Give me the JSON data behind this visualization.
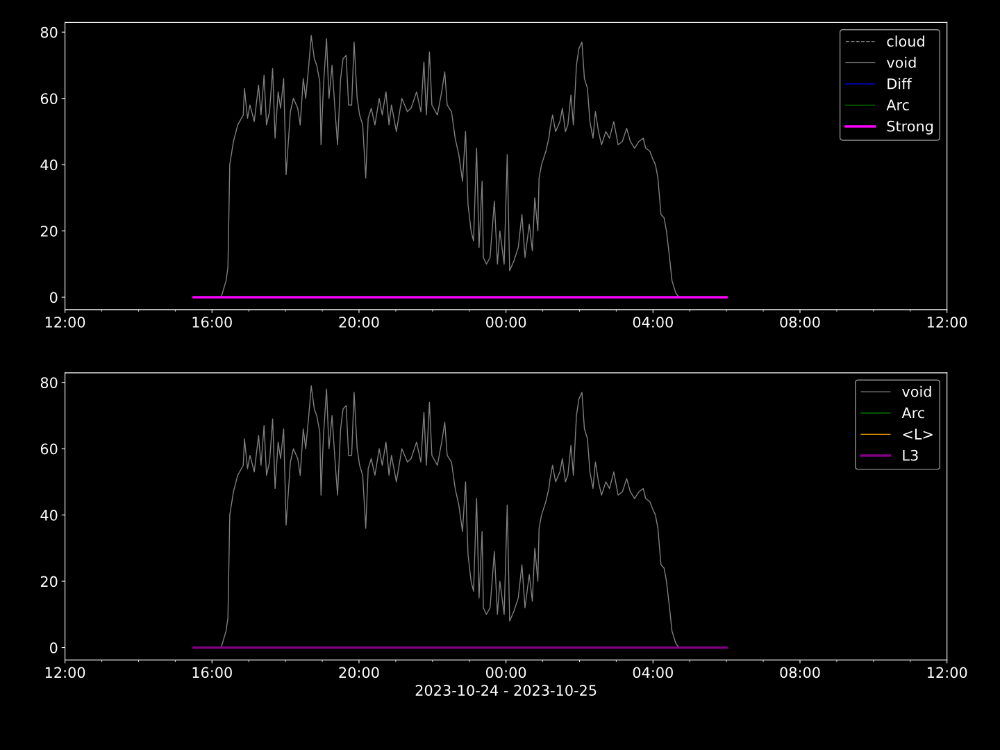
{
  "chart_data": [
    {
      "type": "line",
      "xlim": [
        "2023-10-24T12:00",
        "2023-10-25T12:00"
      ],
      "xticks": [
        {
          "value": "2023-10-24T12:00",
          "label": "12:00"
        },
        {
          "value": "2023-10-24T16:00",
          "label": "16:00"
        },
        {
          "value": "2023-10-24T20:00",
          "label": "20:00"
        },
        {
          "value": "2023-10-25T00:00",
          "label": "00:00"
        },
        {
          "value": "2023-10-25T04:00",
          "label": "04:00"
        },
        {
          "value": "2023-10-25T08:00",
          "label": "08:00"
        },
        {
          "value": "2023-10-25T12:00",
          "label": "12:00"
        }
      ],
      "ylim": [
        -3.75,
        82.9
      ],
      "yticks": [
        0,
        20,
        40,
        60,
        80
      ],
      "grid": false,
      "legend": "top right",
      "x": [
        "2023-10-24T15:30",
        "2023-10-24T16:15",
        "2023-10-24T16:23",
        "2023-10-24T16:26",
        "2023-10-24T16:29",
        "2023-10-24T16:35",
        "2023-10-24T16:42",
        "2023-10-24T16:51",
        "2023-10-24T16:53",
        "2023-10-24T16:58",
        "2023-10-24T17:02",
        "2023-10-24T17:09",
        "2023-10-24T17:16",
        "2023-10-24T17:20",
        "2023-10-24T17:25",
        "2023-10-24T17:29",
        "2023-10-24T17:34",
        "2023-10-24T17:39",
        "2023-10-24T17:43",
        "2023-10-24T17:48",
        "2023-10-24T17:52",
        "2023-10-24T17:57",
        "2023-10-24T18:01",
        "2023-10-24T18:08",
        "2023-10-24T18:13",
        "2023-10-24T18:20",
        "2023-10-24T18:24",
        "2023-10-24T18:29",
        "2023-10-24T18:33",
        "2023-10-24T18:38",
        "2023-10-24T18:42",
        "2023-10-24T18:47",
        "2023-10-24T18:51",
        "2023-10-24T18:56",
        "2023-10-24T18:58",
        "2023-10-24T19:02",
        "2023-10-24T19:07",
        "2023-10-24T19:11",
        "2023-10-24T19:16",
        "2023-10-24T19:21",
        "2023-10-24T19:25",
        "2023-10-24T19:30",
        "2023-10-24T19:34",
        "2023-10-24T19:39",
        "2023-10-24T19:43",
        "2023-10-24T19:48",
        "2023-10-24T19:52",
        "2023-10-24T19:57",
        "2023-10-24T20:01",
        "2023-10-24T20:06",
        "2023-10-24T20:11",
        "2023-10-24T20:15",
        "2023-10-24T20:20",
        "2023-10-24T20:26",
        "2023-10-24T20:33",
        "2023-10-24T20:38",
        "2023-10-24T20:44",
        "2023-10-24T20:49",
        "2023-10-24T20:53",
        "2023-10-24T21:01",
        "2023-10-24T21:10",
        "2023-10-24T21:19",
        "2023-10-24T21:25",
        "2023-10-24T21:34",
        "2023-10-24T21:41",
        "2023-10-24T21:46",
        "2023-10-24T21:50",
        "2023-10-24T21:55",
        "2023-10-24T21:59",
        "2023-10-24T22:08",
        "2023-10-24T22:15",
        "2023-10-24T22:20",
        "2023-10-24T22:24",
        "2023-10-24T22:31",
        "2023-10-24T22:37",
        "2023-10-24T22:43",
        "2023-10-24T22:49",
        "2023-10-24T22:54",
        "2023-10-24T22:58",
        "2023-10-24T23:03",
        "2023-10-24T23:07",
        "2023-10-24T23:12",
        "2023-10-24T23:16",
        "2023-10-24T23:21",
        "2023-10-24T23:23",
        "2023-10-24T23:28",
        "2023-10-24T23:34",
        "2023-10-24T23:41",
        "2023-10-24T23:46",
        "2023-10-24T23:50",
        "2023-10-24T23:57",
        "2023-10-25T00:02",
        "2023-10-25T00:06",
        "2023-10-25T00:13",
        "2023-10-25T00:20",
        "2023-10-25T00:26",
        "2023-10-25T00:31",
        "2023-10-25T00:38",
        "2023-10-25T00:43",
        "2023-10-25T00:47",
        "2023-10-25T00:52",
        "2023-10-25T00:54",
        "2023-10-25T00:58",
        "2023-10-25T01:05",
        "2023-10-25T01:10",
        "2023-10-25T01:12",
        "2023-10-25T01:16",
        "2023-10-25T01:21",
        "2023-10-25T01:28",
        "2023-10-25T01:32",
        "2023-10-25T01:37",
        "2023-10-25T01:41",
        "2023-10-25T01:46",
        "2023-10-25T01:50",
        "2023-10-25T01:55",
        "2023-10-25T01:59",
        "2023-10-25T02:04",
        "2023-10-25T02:08",
        "2023-10-25T02:13",
        "2023-10-25T02:17",
        "2023-10-25T02:22",
        "2023-10-25T02:26",
        "2023-10-25T02:31",
        "2023-10-25T02:36",
        "2023-10-25T02:43",
        "2023-10-25T02:49",
        "2023-10-25T02:56",
        "2023-10-25T03:03",
        "2023-10-25T03:10",
        "2023-10-25T03:17",
        "2023-10-25T03:23",
        "2023-10-25T03:30",
        "2023-10-25T03:37",
        "2023-10-25T03:44",
        "2023-10-25T03:48",
        "2023-10-25T03:55",
        "2023-10-25T03:59",
        "2023-10-25T04:04",
        "2023-10-25T04:08",
        "2023-10-25T04:13",
        "2023-10-25T04:18",
        "2023-10-25T04:22",
        "2023-10-25T04:27",
        "2023-10-25T04:31",
        "2023-10-25T04:36",
        "2023-10-25T04:38",
        "2023-10-25T04:43",
        "2023-10-25T06:00"
      ],
      "series": [
        {
          "name": "cloud",
          "color": "#808080",
          "line_style": "dashed",
          "values": [
            null,
            null,
            null,
            null,
            null,
            null,
            null,
            null,
            null,
            null,
            null,
            null,
            null,
            null,
            null,
            null,
            null,
            null,
            null,
            null,
            null,
            null,
            null,
            null,
            null,
            null,
            null,
            null,
            null,
            null,
            null,
            null,
            null,
            null,
            null,
            null,
            null,
            null,
            null,
            null,
            null,
            null,
            null,
            null,
            null,
            null,
            null,
            null,
            null,
            null,
            null,
            null,
            null,
            null,
            null,
            null,
            null,
            null,
            null,
            null,
            null,
            null,
            null,
            null,
            null,
            null,
            null,
            null,
            null,
            null,
            null,
            null,
            null,
            null,
            null,
            null,
            null,
            null,
            null,
            null,
            null,
            null,
            null,
            null,
            null,
            null,
            null,
            null,
            null,
            null,
            null,
            null,
            null,
            null,
            null,
            null,
            null,
            null,
            null,
            null,
            null,
            null,
            null,
            null,
            null,
            null,
            null,
            null,
            null,
            null,
            null,
            null,
            null,
            null,
            null,
            null,
            null,
            null,
            null,
            null,
            null,
            null,
            null,
            null,
            null,
            null,
            null,
            null,
            null,
            null,
            null,
            null,
            null,
            null,
            null,
            null,
            null,
            null,
            null,
            null,
            null,
            null,
            null,
            null,
            null,
            null,
            null,
            null
          ]
        },
        {
          "name": "void",
          "color": "#808080",
          "values": [
            0,
            0,
            5,
            9,
            40,
            47,
            52,
            55,
            63,
            54,
            58,
            53,
            64,
            55,
            67,
            52,
            56,
            69,
            48,
            62,
            57,
            66,
            37,
            56,
            60,
            57,
            52,
            66,
            60,
            70,
            79,
            72,
            70,
            65,
            46,
            64,
            78,
            60,
            70,
            56,
            46,
            66,
            72,
            73,
            58,
            58,
            77,
            60,
            55,
            52,
            36,
            54,
            57,
            52,
            60,
            55,
            62,
            52,
            58,
            50,
            60,
            56,
            57,
            62,
            56,
            71,
            55,
            74,
            58,
            55,
            62,
            68,
            58,
            56,
            48,
            43,
            35,
            50,
            28,
            20,
            17,
            45,
            15,
            35,
            12,
            10,
            12,
            29,
            10,
            20,
            10,
            43,
            8,
            11,
            15,
            25,
            12,
            22,
            14,
            30,
            20,
            36,
            40,
            44,
            48,
            51,
            55,
            50,
            53,
            57,
            50,
            52,
            61,
            52,
            70,
            75,
            77,
            66,
            63,
            53,
            48,
            56,
            50,
            46,
            50,
            48,
            53,
            46,
            47,
            51,
            47,
            45,
            47,
            48,
            45,
            44,
            42,
            40,
            36,
            25,
            24,
            20,
            12,
            5,
            2,
            1,
            0,
            0
          ]
        },
        {
          "name": "Diff",
          "color": "#0000ff",
          "values": [
            null,
            null,
            null,
            null,
            null,
            null,
            null,
            null,
            null,
            null,
            null,
            null,
            null,
            null,
            null,
            null,
            null,
            null,
            null,
            null,
            null,
            null,
            null,
            null,
            null,
            null,
            null,
            null,
            null,
            null,
            null,
            null,
            null,
            null,
            null,
            null,
            null,
            null,
            null,
            null,
            null,
            null,
            null,
            null,
            null,
            null,
            null,
            null,
            null,
            null,
            null,
            null,
            null,
            null,
            null,
            null,
            null,
            null,
            null,
            null,
            null,
            null,
            null,
            null,
            null,
            null,
            null,
            null,
            null,
            null,
            null,
            null,
            null,
            null,
            null,
            null,
            null,
            null,
            null,
            null,
            null,
            null,
            null,
            null,
            null,
            null,
            null,
            null,
            null,
            null,
            null,
            null,
            null,
            null,
            null,
            null,
            null,
            null,
            null,
            null,
            null,
            null,
            null,
            null,
            null,
            null,
            null,
            null,
            null,
            null,
            null,
            null,
            null,
            null,
            null,
            null,
            null,
            null,
            null,
            null,
            null,
            null,
            null,
            null,
            null,
            null,
            null,
            null,
            null,
            null,
            null,
            null,
            null,
            null,
            null,
            null,
            null,
            null,
            null,
            null,
            null,
            null,
            null,
            null,
            null,
            null,
            null,
            null
          ]
        },
        {
          "name": "Arc",
          "color": "#008000",
          "values": [
            null,
            null,
            null,
            null,
            null,
            null,
            null,
            null,
            null,
            null,
            null,
            null,
            null,
            null,
            null,
            null,
            null,
            null,
            null,
            null,
            null,
            null,
            null,
            null,
            null,
            null,
            null,
            null,
            null,
            null,
            null,
            null,
            null,
            null,
            null,
            null,
            null,
            null,
            null,
            null,
            null,
            null,
            null,
            null,
            null,
            null,
            null,
            null,
            null,
            null,
            null,
            null,
            null,
            null,
            null,
            null,
            null,
            null,
            null,
            null,
            null,
            null,
            null,
            null,
            null,
            null,
            null,
            null,
            null,
            null,
            null,
            null,
            null,
            null,
            null,
            null,
            null,
            null,
            null,
            null,
            null,
            null,
            null,
            null,
            null,
            null,
            null,
            null,
            null,
            null,
            null,
            null,
            null,
            null,
            null,
            null,
            null,
            null,
            null,
            null,
            null,
            null,
            null,
            null,
            null,
            null,
            null,
            null,
            null,
            null,
            null,
            null,
            null,
            null,
            null,
            null,
            null,
            null,
            null,
            null,
            null,
            null,
            null,
            null,
            null,
            null,
            null,
            null,
            null,
            null,
            null,
            null,
            null,
            null,
            null,
            null,
            null,
            null,
            null,
            null,
            null,
            null,
            null,
            null,
            null,
            null,
            null,
            null
          ]
        },
        {
          "name": "Strong",
          "color": "#ff00ff",
          "x": [
            "2023-10-24T15:30",
            "2023-10-25T06:00"
          ],
          "values": [
            0,
            0
          ]
        }
      ]
    },
    {
      "type": "line",
      "xlim": [
        "2023-10-24T12:00",
        "2023-10-25T12:00"
      ],
      "xticks": [
        {
          "value": "2023-10-24T12:00",
          "label": "12:00"
        },
        {
          "value": "2023-10-24T16:00",
          "label": "16:00"
        },
        {
          "value": "2023-10-24T20:00",
          "label": "20:00"
        },
        {
          "value": "2023-10-25T00:00",
          "label": "00:00"
        },
        {
          "value": "2023-10-25T04:00",
          "label": "04:00"
        },
        {
          "value": "2023-10-25T08:00",
          "label": "08:00"
        },
        {
          "value": "2023-10-25T12:00",
          "label": "12:00"
        }
      ],
      "ylim": [
        -3.75,
        82.9
      ],
      "yticks": [
        0,
        20,
        40,
        60,
        80
      ],
      "grid": false,
      "legend": "top right",
      "xlabel": "2023-10-24 - 2023-10-25",
      "x": [
        "2023-10-24T15:30",
        "2023-10-24T16:15",
        "2023-10-24T16:23",
        "2023-10-24T16:26",
        "2023-10-24T16:29",
        "2023-10-24T16:35",
        "2023-10-24T16:42",
        "2023-10-24T16:51",
        "2023-10-24T16:53",
        "2023-10-24T16:58",
        "2023-10-24T17:02",
        "2023-10-24T17:09",
        "2023-10-24T17:16",
        "2023-10-24T17:20",
        "2023-10-24T17:25",
        "2023-10-24T17:29",
        "2023-10-24T17:34",
        "2023-10-24T17:39",
        "2023-10-24T17:43",
        "2023-10-24T17:48",
        "2023-10-24T17:52",
        "2023-10-24T17:57",
        "2023-10-24T18:01",
        "2023-10-24T18:08",
        "2023-10-24T18:13",
        "2023-10-24T18:20",
        "2023-10-24T18:24",
        "2023-10-24T18:29",
        "2023-10-24T18:33",
        "2023-10-24T18:38",
        "2023-10-24T18:42",
        "2023-10-24T18:47",
        "2023-10-24T18:51",
        "2023-10-24T18:56",
        "2023-10-24T18:58",
        "2023-10-24T19:02",
        "2023-10-24T19:07",
        "2023-10-24T19:11",
        "2023-10-24T19:16",
        "2023-10-24T19:21",
        "2023-10-24T19:25",
        "2023-10-24T19:30",
        "2023-10-24T19:34",
        "2023-10-24T19:39",
        "2023-10-24T19:43",
        "2023-10-24T19:48",
        "2023-10-24T19:52",
        "2023-10-24T19:57",
        "2023-10-24T20:01",
        "2023-10-24T20:06",
        "2023-10-24T20:11",
        "2023-10-24T20:15",
        "2023-10-24T20:20",
        "2023-10-24T20:26",
        "2023-10-24T20:33",
        "2023-10-24T20:38",
        "2023-10-24T20:44",
        "2023-10-24T20:49",
        "2023-10-24T20:53",
        "2023-10-24T21:01",
        "2023-10-24T21:10",
        "2023-10-24T21:19",
        "2023-10-24T21:25",
        "2023-10-24T21:34",
        "2023-10-24T21:41",
        "2023-10-24T21:46",
        "2023-10-24T21:50",
        "2023-10-24T21:55",
        "2023-10-24T21:59",
        "2023-10-24T22:08",
        "2023-10-24T22:15",
        "2023-10-24T22:20",
        "2023-10-24T22:24",
        "2023-10-24T22:31",
        "2023-10-24T22:37",
        "2023-10-24T22:43",
        "2023-10-24T22:49",
        "2023-10-24T22:54",
        "2023-10-24T22:58",
        "2023-10-24T23:03",
        "2023-10-24T23:07",
        "2023-10-24T23:12",
        "2023-10-24T23:16",
        "2023-10-24T23:21",
        "2023-10-24T23:23",
        "2023-10-24T23:28",
        "2023-10-24T23:34",
        "2023-10-24T23:41",
        "2023-10-24T23:46",
        "2023-10-24T23:50",
        "2023-10-24T23:57",
        "2023-10-25T00:02",
        "2023-10-25T00:06",
        "2023-10-25T00:13",
        "2023-10-25T00:20",
        "2023-10-25T00:26",
        "2023-10-25T00:31",
        "2023-10-25T00:38",
        "2023-10-25T00:43",
        "2023-10-25T00:47",
        "2023-10-25T00:52",
        "2023-10-25T00:54",
        "2023-10-25T00:58",
        "2023-10-25T01:05",
        "2023-10-25T01:10",
        "2023-10-25T01:12",
        "2023-10-25T01:16",
        "2023-10-25T01:21",
        "2023-10-25T01:28",
        "2023-10-25T01:32",
        "2023-10-25T01:37",
        "2023-10-25T01:41",
        "2023-10-25T01:46",
        "2023-10-25T01:50",
        "2023-10-25T01:55",
        "2023-10-25T01:59",
        "2023-10-25T02:04",
        "2023-10-25T02:08",
        "2023-10-25T02:13",
        "2023-10-25T02:17",
        "2023-10-25T02:22",
        "2023-10-25T02:26",
        "2023-10-25T02:31",
        "2023-10-25T02:36",
        "2023-10-25T02:43",
        "2023-10-25T02:49",
        "2023-10-25T02:56",
        "2023-10-25T03:03",
        "2023-10-25T03:10",
        "2023-10-25T03:17",
        "2023-10-25T03:23",
        "2023-10-25T03:30",
        "2023-10-25T03:37",
        "2023-10-25T03:44",
        "2023-10-25T03:48",
        "2023-10-25T03:55",
        "2023-10-25T03:59",
        "2023-10-25T04:04",
        "2023-10-25T04:08",
        "2023-10-25T04:13",
        "2023-10-25T04:18",
        "2023-10-25T04:22",
        "2023-10-25T04:27",
        "2023-10-25T04:31",
        "2023-10-25T04:36",
        "2023-10-25T04:38",
        "2023-10-25T04:43",
        "2023-10-25T06:00"
      ],
      "series": [
        {
          "name": "void",
          "color": "#808080",
          "values": [
            0,
            0,
            5,
            9,
            40,
            47,
            52,
            55,
            63,
            54,
            58,
            53,
            64,
            55,
            67,
            52,
            56,
            69,
            48,
            62,
            57,
            66,
            37,
            56,
            60,
            57,
            52,
            66,
            60,
            70,
            79,
            72,
            70,
            65,
            46,
            64,
            78,
            60,
            70,
            56,
            46,
            66,
            72,
            73,
            58,
            58,
            77,
            60,
            55,
            52,
            36,
            54,
            57,
            52,
            60,
            55,
            62,
            52,
            58,
            50,
            60,
            56,
            57,
            62,
            56,
            71,
            55,
            74,
            58,
            55,
            62,
            68,
            58,
            56,
            48,
            43,
            35,
            50,
            28,
            20,
            17,
            45,
            15,
            35,
            12,
            10,
            12,
            29,
            10,
            20,
            10,
            43,
            8,
            11,
            15,
            25,
            12,
            22,
            14,
            30,
            20,
            36,
            40,
            44,
            48,
            51,
            55,
            50,
            53,
            57,
            50,
            52,
            61,
            52,
            70,
            75,
            77,
            66,
            63,
            53,
            48,
            56,
            50,
            46,
            50,
            48,
            53,
            46,
            47,
            51,
            47,
            45,
            47,
            48,
            45,
            44,
            42,
            40,
            36,
            25,
            24,
            20,
            12,
            5,
            2,
            1,
            0,
            0
          ]
        },
        {
          "name": "Arc",
          "color": "#008000",
          "values": [
            null,
            null,
            null,
            null,
            null,
            null,
            null,
            null,
            null,
            null,
            null,
            null,
            null,
            null,
            null,
            null,
            null,
            null,
            null,
            null,
            null,
            null,
            null,
            null,
            null,
            null,
            null,
            null,
            null,
            null,
            null,
            null,
            null,
            null,
            null,
            null,
            null,
            null,
            null,
            null,
            null,
            null,
            null,
            null,
            null,
            null,
            null,
            null,
            null,
            null,
            null,
            null,
            null,
            null,
            null,
            null,
            null,
            null,
            null,
            null,
            null,
            null,
            null,
            null,
            null,
            null,
            null,
            null,
            null,
            null,
            null,
            null,
            null,
            null,
            null,
            null,
            null,
            null,
            null,
            null,
            null,
            null,
            null,
            null,
            null,
            null,
            null,
            null,
            null,
            null,
            null,
            null,
            null,
            null,
            null,
            null,
            null,
            null,
            null,
            null,
            null,
            null,
            null,
            null,
            null,
            null,
            null,
            null,
            null,
            null,
            null,
            null,
            null,
            null,
            null,
            null,
            null,
            null,
            null,
            null,
            null,
            null,
            null,
            null,
            null,
            null,
            null,
            null,
            null,
            null,
            null,
            null,
            null,
            null,
            null,
            null,
            null,
            null,
            null,
            null,
            null,
            null,
            null,
            null,
            null,
            null,
            null,
            null
          ]
        },
        {
          "name": "<L>",
          "color": "#ffa500",
          "values": [
            null,
            null,
            null,
            null,
            null,
            null,
            null,
            null,
            null,
            null,
            null,
            null,
            null,
            null,
            null,
            null,
            null,
            null,
            null,
            null,
            null,
            null,
            null,
            null,
            null,
            null,
            null,
            null,
            null,
            null,
            null,
            null,
            null,
            null,
            null,
            null,
            null,
            null,
            null,
            null,
            null,
            null,
            null,
            null,
            null,
            null,
            null,
            null,
            null,
            null,
            null,
            null,
            null,
            null,
            null,
            null,
            null,
            null,
            null,
            null,
            null,
            null,
            null,
            null,
            null,
            null,
            null,
            null,
            null,
            null,
            null,
            null,
            null,
            null,
            null,
            null,
            null,
            null,
            null,
            null,
            null,
            null,
            null,
            null,
            null,
            null,
            null,
            null,
            null,
            null,
            null,
            null,
            null,
            null,
            null,
            null,
            null,
            null,
            null,
            null,
            null,
            null,
            null,
            null,
            null,
            null,
            null,
            null,
            null,
            null,
            null,
            null,
            null,
            null,
            null,
            null,
            null,
            null,
            null,
            null,
            null,
            null,
            null,
            null,
            null,
            null,
            null,
            null,
            null,
            null,
            null,
            null,
            null,
            null,
            null,
            null,
            null,
            null,
            null,
            null,
            null,
            null,
            null,
            null,
            null,
            null,
            null,
            null
          ]
        },
        {
          "name": "L3",
          "color": "#800080",
          "x": [
            "2023-10-24T15:30",
            "2023-10-25T06:00"
          ],
          "values": [
            0,
            0
          ]
        }
      ]
    }
  ]
}
